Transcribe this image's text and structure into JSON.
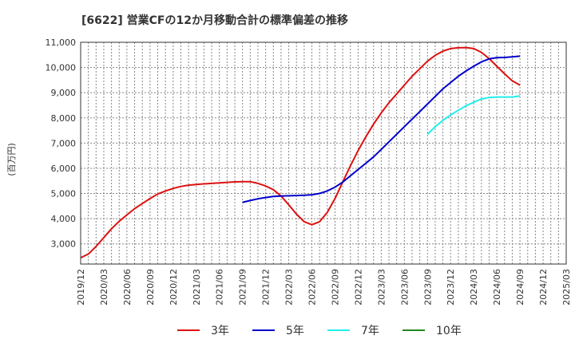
{
  "chart_data": {
    "type": "line",
    "title": "[6622]  営業CFの12か月移動合計の標準偏差の推移",
    "ylabel": "(百万円)",
    "xlabel": "",
    "ylim": [
      2200,
      11000
    ],
    "y_ticks": [
      3000,
      4000,
      5000,
      6000,
      7000,
      8000,
      9000,
      10000,
      11000
    ],
    "y_tick_labels": [
      "3,000",
      "4,000",
      "5,000",
      "6,000",
      "7,000",
      "8,000",
      "9,000",
      "10,000",
      "11,000"
    ],
    "x_range": [
      "2019/12",
      "2025/03"
    ],
    "x_tick_labels": [
      "2019/12",
      "2020/03",
      "2020/06",
      "2020/09",
      "2020/12",
      "2021/03",
      "2021/06",
      "2021/09",
      "2021/12",
      "2022/03",
      "2022/06",
      "2022/09",
      "2022/12",
      "2023/03",
      "2023/06",
      "2023/09",
      "2023/12",
      "2024/03",
      "2024/06",
      "2024/09",
      "2024/12",
      "2025/03"
    ],
    "grid": true,
    "legend_position": "bottom",
    "series": [
      {
        "name": "3年",
        "color": "#dd1111",
        "x": [
          "2019/12",
          "2020/01",
          "2020/02",
          "2020/03",
          "2020/04",
          "2020/05",
          "2020/06",
          "2020/07",
          "2020/08",
          "2020/09",
          "2020/10",
          "2020/11",
          "2020/12",
          "2021/01",
          "2021/02",
          "2021/03",
          "2021/04",
          "2021/05",
          "2021/06",
          "2021/07",
          "2021/08",
          "2021/09",
          "2021/10",
          "2021/11",
          "2021/12",
          "2022/01",
          "2022/02",
          "2022/03",
          "2022/04",
          "2022/05",
          "2022/06",
          "2022/07",
          "2022/08",
          "2022/09",
          "2022/10",
          "2022/11",
          "2022/12",
          "2023/01",
          "2023/02",
          "2023/03",
          "2023/04",
          "2023/05",
          "2023/06",
          "2023/07",
          "2023/08",
          "2023/09",
          "2023/10",
          "2023/11",
          "2023/12",
          "2024/01",
          "2024/02",
          "2024/03",
          "2024/04",
          "2024/05",
          "2024/06",
          "2024/07",
          "2024/08",
          "2024/09"
        ],
        "values": [
          2450,
          2600,
          2900,
          3250,
          3600,
          3900,
          4150,
          4400,
          4600,
          4800,
          4980,
          5100,
          5200,
          5280,
          5330,
          5360,
          5380,
          5400,
          5420,
          5440,
          5460,
          5470,
          5470,
          5400,
          5300,
          5150,
          4900,
          4550,
          4180,
          3880,
          3760,
          3880,
          4250,
          4800,
          5450,
          6100,
          6700,
          7250,
          7750,
          8200,
          8600,
          8950,
          9300,
          9650,
          9950,
          10250,
          10480,
          10650,
          10750,
          10780,
          10790,
          10750,
          10600,
          10350,
          10050,
          9750,
          9470,
          9300
        ]
      },
      {
        "name": "5年",
        "color": "#0000cc",
        "x": [
          "2021/09",
          "2021/10",
          "2021/11",
          "2021/12",
          "2022/01",
          "2022/02",
          "2022/03",
          "2022/04",
          "2022/05",
          "2022/06",
          "2022/07",
          "2022/08",
          "2022/09",
          "2022/10",
          "2022/11",
          "2022/12",
          "2023/01",
          "2023/02",
          "2023/03",
          "2023/04",
          "2023/05",
          "2023/06",
          "2023/07",
          "2023/08",
          "2023/09",
          "2023/10",
          "2023/11",
          "2023/12",
          "2024/01",
          "2024/02",
          "2024/03",
          "2024/04",
          "2024/05",
          "2024/06",
          "2024/07",
          "2024/08",
          "2024/09"
        ],
        "values": [
          4650,
          4720,
          4790,
          4840,
          4880,
          4900,
          4910,
          4920,
          4930,
          4950,
          5000,
          5100,
          5250,
          5450,
          5700,
          5950,
          6200,
          6450,
          6750,
          7050,
          7350,
          7650,
          7950,
          8250,
          8550,
          8850,
          9150,
          9400,
          9650,
          9860,
          10050,
          10220,
          10340,
          10390,
          10400,
          10420,
          10450
        ]
      },
      {
        "name": "7年",
        "color": "#22eeee",
        "x": [
          "2023/09",
          "2023/10",
          "2023/11",
          "2023/12",
          "2024/01",
          "2024/02",
          "2024/03",
          "2024/04",
          "2024/05",
          "2024/06",
          "2024/07",
          "2024/08",
          "2024/09"
        ],
        "values": [
          7350,
          7650,
          7900,
          8120,
          8300,
          8480,
          8620,
          8750,
          8810,
          8830,
          8830,
          8830,
          8870
        ]
      },
      {
        "name": "10年",
        "color": "#228822",
        "x": [],
        "values": []
      }
    ]
  }
}
